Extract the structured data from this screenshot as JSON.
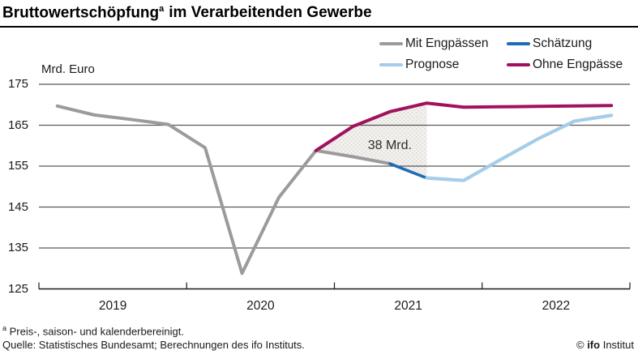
{
  "header": {
    "title_main": "Bruttowertschöpfung",
    "title_sup": "a",
    "title_rest": "im Verarbeitenden Gewerbe"
  },
  "legend": {
    "items": [
      "Mit Engpässen",
      "Schätzung",
      "Prognose",
      "Ohne Engpässe"
    ]
  },
  "chart_data": {
    "type": "line",
    "title": "Bruttowertschöpfung im Verarbeitenden Gewerbe",
    "unit_label": "Mrd. Euro",
    "x_axis": {
      "year_labels": [
        "2019",
        "2020",
        "2021",
        "2022"
      ],
      "range": [
        "2019Q1",
        "2022Q4"
      ],
      "grid": false
    },
    "y_axis": {
      "ticks": [
        175,
        165,
        155,
        145,
        135,
        125
      ],
      "min": 125,
      "max": 175,
      "grid": true
    },
    "legend_position": "top-right",
    "series": [
      {
        "id": "mit-engpaessen",
        "name": "Mit Engpässen",
        "color": "#9b9b9b",
        "quarters": [
          "2019Q1",
          "2019Q2",
          "2019Q3",
          "2019Q4",
          "2020Q1",
          "2020Q2",
          "2020Q3",
          "2020Q4",
          "2021Q1",
          "2021Q2"
        ],
        "values": [
          169.7,
          167.5,
          166.4,
          165.2,
          159.5,
          128.8,
          147.4,
          158.8,
          157.3,
          155.6
        ]
      },
      {
        "id": "schaetzung",
        "name": "Schätzung",
        "color": "#1f6cb4",
        "quarters": [
          "2021Q2",
          "2021Q3"
        ],
        "values": [
          155.6,
          152.1
        ]
      },
      {
        "id": "prognose",
        "name": "Prognose",
        "color": "#a5cde9",
        "quarters": [
          "2021Q3",
          "2021Q4",
          "2022Q1",
          "2022Q2",
          "2022Q3",
          "2022Q4"
        ],
        "values": [
          152.1,
          151.5,
          156.6,
          161.6,
          166.0,
          167.4
        ]
      },
      {
        "id": "ohne-engpaesse",
        "name": "Ohne Engpässe",
        "color": "#a1125e",
        "quarters": [
          "2020Q4",
          "2021Q1",
          "2021Q2",
          "2021Q3",
          "2021Q4",
          "2022Q1",
          "2022Q2",
          "2022Q3",
          "2022Q4"
        ],
        "values": [
          158.8,
          164.7,
          168.3,
          170.4,
          169.4,
          169.5,
          169.6,
          169.7,
          169.8
        ]
      }
    ],
    "annotation": {
      "text": "38 Mrd.",
      "anchor_quarter": "2021Q2",
      "anchor_value": 160
    },
    "shaded_gap": {
      "from_quarter": "2020Q4",
      "to_quarter": "2021Q3",
      "upper_series": "Ohne Engpässe",
      "lower_series_priority": [
        "Schätzung",
        "Mit Engpässen"
      ]
    }
  },
  "footnotes": {
    "marker": "a",
    "note": "Preis-, saison- und kalenderbereinigt.",
    "source": "Quelle: Statistisches Bundesamt; Berechnungen des ifo Instituts."
  },
  "copyright": {
    "symbol": "©",
    "brand": "ifo",
    "suffix": "Institut"
  }
}
